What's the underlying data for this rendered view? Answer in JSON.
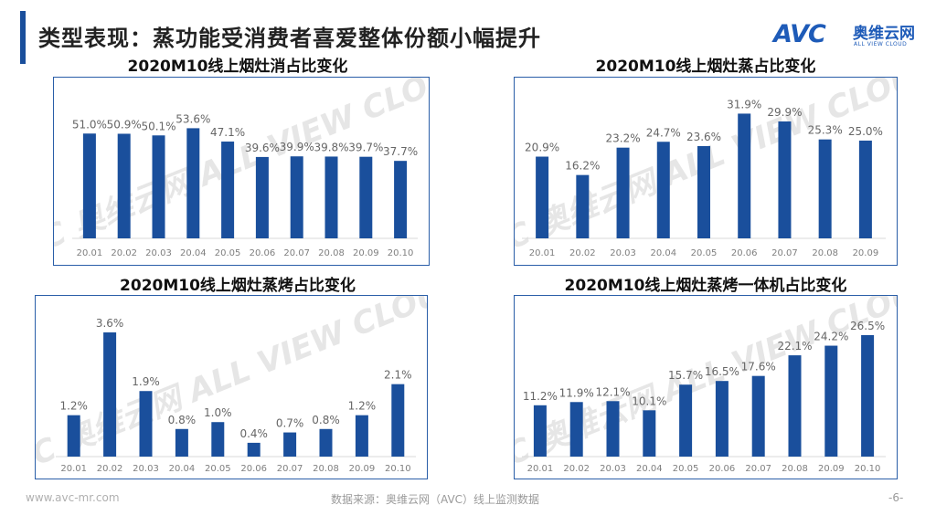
{
  "header": {
    "title": "类型表现：蒸功能受消费者喜爱整体份额小幅提升",
    "logo_text": "AVC",
    "logo_cn": "奥维云网",
    "logo_en": "ALL VIEW CLOUD"
  },
  "watermark": {
    "text": "AVC 奥维云网 ALL VIEW CLOUD"
  },
  "footer": {
    "website": "www.avc-mr.com",
    "source": "数据来源：奥维云网（AVC）线上监测数据",
    "page": "-6-"
  },
  "colors": {
    "bar": "#1a4f9c",
    "frame": "#2a5ea8",
    "accent": "#1a4f9c",
    "label": "#666666"
  },
  "chart_data": [
    {
      "type": "bar",
      "title": "2020M10线上烟灶消占比变化",
      "categories": [
        "20.01",
        "20.02",
        "20.03",
        "20.04",
        "20.05",
        "20.06",
        "20.07",
        "20.08",
        "20.09",
        "20.10"
      ],
      "values": [
        51.0,
        50.9,
        50.1,
        53.6,
        47.1,
        39.6,
        39.9,
        39.8,
        39.7,
        37.7
      ],
      "labels": [
        "51.0%",
        "50.9%",
        "50.1%",
        "53.6%",
        "47.1%",
        "39.6%",
        "39.9%",
        "39.8%",
        "39.7%",
        "37.7%"
      ],
      "ylim": [
        0,
        60
      ],
      "grid": false,
      "legend": "none"
    },
    {
      "type": "bar",
      "title": "2020M10线上烟灶蒸占比变化",
      "categories": [
        "20.01",
        "20.02",
        "20.03",
        "20.04",
        "20.05",
        "20.06",
        "20.07",
        "20.08",
        "20.09"
      ],
      "values": [
        20.9,
        16.2,
        23.2,
        24.7,
        23.6,
        31.9,
        29.9,
        25.3,
        25.0
      ],
      "labels": [
        "20.9%",
        "16.2%",
        "23.2%",
        "24.7%",
        "23.6%",
        "31.9%",
        "29.9%",
        "25.3%",
        "25.0%"
      ],
      "ylim": [
        0,
        32
      ],
      "grid": false,
      "legend": "none"
    },
    {
      "type": "bar",
      "title": "2020M10线上烟灶蒸烤占比变化",
      "categories": [
        "20.01",
        "20.02",
        "20.03",
        "20.04",
        "20.05",
        "20.06",
        "20.07",
        "20.08",
        "20.09",
        "20.10"
      ],
      "values": [
        1.2,
        3.6,
        1.9,
        0.8,
        1.0,
        0.4,
        0.7,
        0.8,
        1.2,
        2.1
      ],
      "labels": [
        "1.2%",
        "3.6%",
        "1.9%",
        "0.8%",
        "1.0%",
        "0.4%",
        "0.7%",
        "0.8%",
        "1.2%",
        "2.1%"
      ],
      "ylim": [
        0,
        3.6
      ],
      "grid": false,
      "legend": "none"
    },
    {
      "type": "bar",
      "title": "2020M10线上烟灶蒸烤一体机占比变化",
      "categories": [
        "20.01",
        "20.02",
        "20.03",
        "20.04",
        "20.05",
        "20.06",
        "20.07",
        "20.08",
        "20.09",
        "20.10"
      ],
      "values": [
        11.2,
        11.9,
        12.1,
        10.1,
        15.7,
        16.5,
        17.6,
        22.1,
        24.2,
        26.5
      ],
      "labels": [
        "11.2%",
        "11.9%",
        "12.1%",
        "10.1%",
        "15.7%",
        "16.5%",
        "17.6%",
        "22.1%",
        "24.2%",
        "26.5%"
      ],
      "ylim": [
        0,
        26.5
      ],
      "grid": false,
      "legend": "none"
    }
  ]
}
